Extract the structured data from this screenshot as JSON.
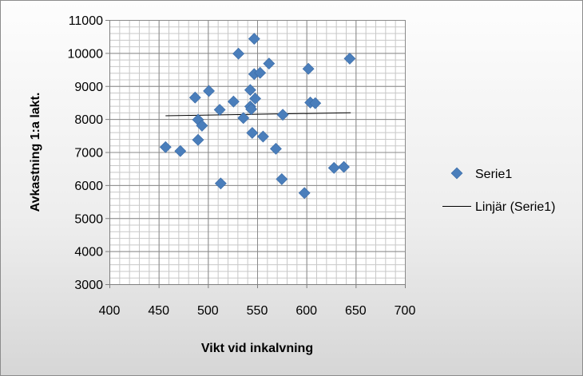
{
  "chart_data": {
    "type": "scatter",
    "title": "",
    "xlabel": "Vikt vid inkalvning",
    "ylabel": "Avkastning 1:a lakt.",
    "xlim": [
      400,
      700
    ],
    "ylim": [
      3000,
      11000
    ],
    "xticks": [
      400,
      450,
      500,
      550,
      600,
      650,
      700
    ],
    "yticks": [
      3000,
      4000,
      5000,
      6000,
      7000,
      8000,
      9000,
      10000,
      11000
    ],
    "xtick_labels": [
      "400",
      "450",
      "500",
      "550",
      "600",
      "650",
      "700"
    ],
    "ytick_labels": [
      "3000",
      "4000",
      "5000",
      "6000",
      "7000",
      "8000",
      "9000",
      "10000",
      "11000"
    ],
    "grid": true,
    "legend_position": "right",
    "marker_color": "#4a7ebb",
    "trend_color": "#000000",
    "series": [
      {
        "name": "Serie1",
        "marker": "diamond",
        "points": [
          [
            457,
            7150
          ],
          [
            472,
            7030
          ],
          [
            487,
            8650
          ],
          [
            490,
            7980
          ],
          [
            490,
            7370
          ],
          [
            494,
            7800
          ],
          [
            501,
            8850
          ],
          [
            512,
            8280
          ],
          [
            513,
            6050
          ],
          [
            526,
            8530
          ],
          [
            531,
            9980
          ],
          [
            536,
            8030
          ],
          [
            543,
            8880
          ],
          [
            543,
            8380
          ],
          [
            544,
            8300
          ],
          [
            545,
            7580
          ],
          [
            547,
            10430
          ],
          [
            547,
            9360
          ],
          [
            548,
            8620
          ],
          [
            553,
            9400
          ],
          [
            556,
            7470
          ],
          [
            562,
            9680
          ],
          [
            569,
            7100
          ],
          [
            575,
            6180
          ],
          [
            576,
            8130
          ],
          [
            598,
            5760
          ],
          [
            602,
            9520
          ],
          [
            604,
            8500
          ],
          [
            609,
            8480
          ],
          [
            628,
            6520
          ],
          [
            638,
            6550
          ],
          [
            644,
            9830
          ]
        ]
      },
      {
        "name": "Linjär (Serie1)",
        "type": "trendline",
        "x": [
          457,
          645
        ],
        "y": [
          8100,
          8190
        ]
      }
    ]
  }
}
